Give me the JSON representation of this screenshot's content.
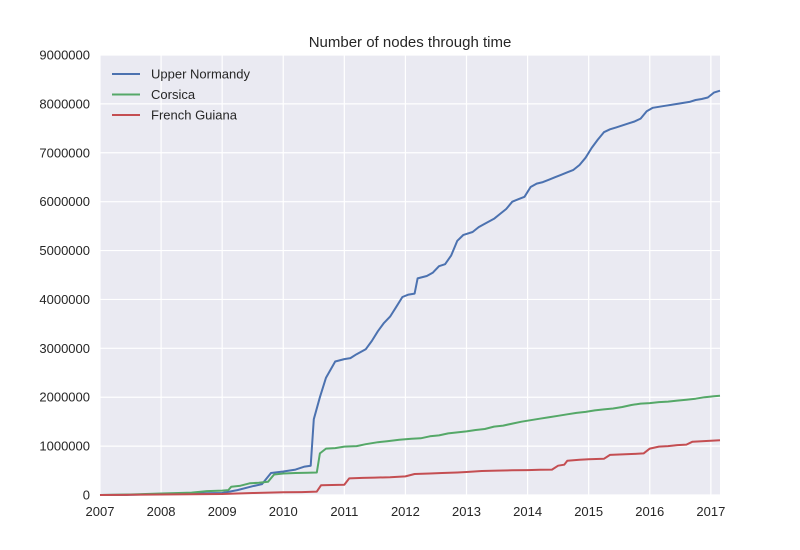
{
  "chart_data": {
    "type": "line",
    "title": "Number of nodes through time",
    "xlabel": "",
    "ylabel": "",
    "xlim": [
      2007.0,
      2017.15
    ],
    "ylim": [
      0,
      9000000
    ],
    "x_ticks": [
      2007,
      2008,
      2009,
      2010,
      2011,
      2012,
      2013,
      2014,
      2015,
      2016,
      2017
    ],
    "x_tick_labels": [
      "2007",
      "2008",
      "2009",
      "2010",
      "2011",
      "2012",
      "2013",
      "2014",
      "2015",
      "2016",
      "2017"
    ],
    "y_ticks": [
      0,
      1000000,
      2000000,
      3000000,
      4000000,
      5000000,
      6000000,
      7000000,
      8000000,
      9000000
    ],
    "y_tick_labels": [
      "0",
      "1000000",
      "2000000",
      "3000000",
      "4000000",
      "5000000",
      "6000000",
      "7000000",
      "8000000",
      "9000000"
    ],
    "grid": true,
    "legend_position": "upper-left",
    "background_color": "#eaeaf2",
    "series": [
      {
        "name": "Upper Normandy",
        "color": "#4c72b0",
        "points": [
          [
            2007.0,
            0
          ],
          [
            2007.5,
            5000
          ],
          [
            2008.0,
            20000
          ],
          [
            2008.5,
            30000
          ],
          [
            2009.0,
            40000
          ],
          [
            2009.25,
            100000
          ],
          [
            2009.5,
            180000
          ],
          [
            2009.65,
            220000
          ],
          [
            2009.8,
            450000
          ],
          [
            2010.0,
            480000
          ],
          [
            2010.2,
            520000
          ],
          [
            2010.35,
            580000
          ],
          [
            2010.45,
            600000
          ],
          [
            2010.5,
            1550000
          ],
          [
            2010.6,
            2000000
          ],
          [
            2010.7,
            2400000
          ],
          [
            2010.85,
            2730000
          ],
          [
            2011.0,
            2780000
          ],
          [
            2011.1,
            2800000
          ],
          [
            2011.2,
            2880000
          ],
          [
            2011.35,
            2980000
          ],
          [
            2011.45,
            3150000
          ],
          [
            2011.55,
            3350000
          ],
          [
            2011.65,
            3520000
          ],
          [
            2011.75,
            3650000
          ],
          [
            2011.85,
            3850000
          ],
          [
            2011.95,
            4050000
          ],
          [
            2012.05,
            4100000
          ],
          [
            2012.15,
            4120000
          ],
          [
            2012.2,
            4430000
          ],
          [
            2012.35,
            4480000
          ],
          [
            2012.45,
            4550000
          ],
          [
            2012.55,
            4680000
          ],
          [
            2012.65,
            4720000
          ],
          [
            2012.75,
            4900000
          ],
          [
            2012.85,
            5200000
          ],
          [
            2012.95,
            5320000
          ],
          [
            2013.1,
            5380000
          ],
          [
            2013.2,
            5480000
          ],
          [
            2013.3,
            5550000
          ],
          [
            2013.45,
            5650000
          ],
          [
            2013.55,
            5750000
          ],
          [
            2013.65,
            5850000
          ],
          [
            2013.75,
            6000000
          ],
          [
            2013.85,
            6050000
          ],
          [
            2013.95,
            6100000
          ],
          [
            2014.05,
            6300000
          ],
          [
            2014.15,
            6370000
          ],
          [
            2014.25,
            6400000
          ],
          [
            2014.35,
            6450000
          ],
          [
            2014.45,
            6500000
          ],
          [
            2014.55,
            6550000
          ],
          [
            2014.65,
            6600000
          ],
          [
            2014.75,
            6650000
          ],
          [
            2014.85,
            6750000
          ],
          [
            2014.95,
            6900000
          ],
          [
            2015.05,
            7100000
          ],
          [
            2015.15,
            7270000
          ],
          [
            2015.25,
            7420000
          ],
          [
            2015.35,
            7480000
          ],
          [
            2015.45,
            7520000
          ],
          [
            2015.55,
            7560000
          ],
          [
            2015.65,
            7600000
          ],
          [
            2015.75,
            7640000
          ],
          [
            2015.85,
            7700000
          ],
          [
            2015.95,
            7850000
          ],
          [
            2016.05,
            7920000
          ],
          [
            2016.15,
            7940000
          ],
          [
            2016.25,
            7960000
          ],
          [
            2016.35,
            7980000
          ],
          [
            2016.45,
            8000000
          ],
          [
            2016.55,
            8020000
          ],
          [
            2016.65,
            8040000
          ],
          [
            2016.75,
            8080000
          ],
          [
            2016.85,
            8100000
          ],
          [
            2016.95,
            8130000
          ],
          [
            2017.05,
            8230000
          ],
          [
            2017.15,
            8270000
          ]
        ]
      },
      {
        "name": "Corsica",
        "color": "#55a868",
        "points": [
          [
            2007.0,
            0
          ],
          [
            2007.5,
            10000
          ],
          [
            2008.0,
            30000
          ],
          [
            2008.5,
            50000
          ],
          [
            2008.75,
            80000
          ],
          [
            2009.0,
            90000
          ],
          [
            2009.1,
            100000
          ],
          [
            2009.15,
            170000
          ],
          [
            2009.3,
            190000
          ],
          [
            2009.45,
            240000
          ],
          [
            2009.6,
            250000
          ],
          [
            2009.75,
            270000
          ],
          [
            2009.85,
            420000
          ],
          [
            2010.0,
            440000
          ],
          [
            2010.2,
            450000
          ],
          [
            2010.4,
            455000
          ],
          [
            2010.55,
            460000
          ],
          [
            2010.6,
            850000
          ],
          [
            2010.7,
            950000
          ],
          [
            2010.85,
            960000
          ],
          [
            2011.0,
            990000
          ],
          [
            2011.2,
            1000000
          ],
          [
            2011.35,
            1040000
          ],
          [
            2011.55,
            1080000
          ],
          [
            2011.7,
            1100000
          ],
          [
            2011.9,
            1130000
          ],
          [
            2012.1,
            1150000
          ],
          [
            2012.25,
            1160000
          ],
          [
            2012.4,
            1200000
          ],
          [
            2012.55,
            1220000
          ],
          [
            2012.7,
            1260000
          ],
          [
            2012.85,
            1280000
          ],
          [
            2013.0,
            1300000
          ],
          [
            2013.15,
            1330000
          ],
          [
            2013.3,
            1350000
          ],
          [
            2013.45,
            1400000
          ],
          [
            2013.6,
            1420000
          ],
          [
            2013.75,
            1460000
          ],
          [
            2013.9,
            1500000
          ],
          [
            2014.05,
            1530000
          ],
          [
            2014.2,
            1560000
          ],
          [
            2014.35,
            1590000
          ],
          [
            2014.5,
            1620000
          ],
          [
            2014.65,
            1650000
          ],
          [
            2014.8,
            1680000
          ],
          [
            2014.95,
            1700000
          ],
          [
            2015.1,
            1730000
          ],
          [
            2015.25,
            1750000
          ],
          [
            2015.4,
            1770000
          ],
          [
            2015.55,
            1800000
          ],
          [
            2015.7,
            1840000
          ],
          [
            2015.85,
            1870000
          ],
          [
            2016.0,
            1880000
          ],
          [
            2016.15,
            1900000
          ],
          [
            2016.3,
            1910000
          ],
          [
            2016.45,
            1930000
          ],
          [
            2016.6,
            1950000
          ],
          [
            2016.75,
            1970000
          ],
          [
            2016.9,
            2000000
          ],
          [
            2017.05,
            2020000
          ],
          [
            2017.15,
            2030000
          ]
        ]
      },
      {
        "name": "French Guiana",
        "color": "#c44e52",
        "points": [
          [
            2007.0,
            0
          ],
          [
            2007.5,
            5000
          ],
          [
            2008.0,
            10000
          ],
          [
            2008.5,
            15000
          ],
          [
            2009.0,
            20000
          ],
          [
            2009.5,
            40000
          ],
          [
            2010.0,
            55000
          ],
          [
            2010.3,
            60000
          ],
          [
            2010.55,
            70000
          ],
          [
            2010.62,
            200000
          ],
          [
            2010.8,
            205000
          ],
          [
            2011.0,
            210000
          ],
          [
            2011.08,
            340000
          ],
          [
            2011.3,
            350000
          ],
          [
            2011.5,
            355000
          ],
          [
            2011.75,
            365000
          ],
          [
            2012.0,
            380000
          ],
          [
            2012.15,
            430000
          ],
          [
            2012.4,
            440000
          ],
          [
            2012.6,
            450000
          ],
          [
            2012.85,
            460000
          ],
          [
            2013.0,
            470000
          ],
          [
            2013.25,
            490000
          ],
          [
            2013.5,
            500000
          ],
          [
            2013.75,
            505000
          ],
          [
            2014.0,
            510000
          ],
          [
            2014.2,
            515000
          ],
          [
            2014.4,
            520000
          ],
          [
            2014.5,
            600000
          ],
          [
            2014.6,
            620000
          ],
          [
            2014.65,
            700000
          ],
          [
            2014.85,
            720000
          ],
          [
            2015.0,
            730000
          ],
          [
            2015.25,
            740000
          ],
          [
            2015.35,
            820000
          ],
          [
            2015.55,
            830000
          ],
          [
            2015.75,
            840000
          ],
          [
            2015.9,
            850000
          ],
          [
            2016.0,
            950000
          ],
          [
            2016.15,
            990000
          ],
          [
            2016.3,
            1000000
          ],
          [
            2016.45,
            1020000
          ],
          [
            2016.6,
            1030000
          ],
          [
            2016.7,
            1090000
          ],
          [
            2016.85,
            1100000
          ],
          [
            2017.0,
            1110000
          ],
          [
            2017.15,
            1120000
          ]
        ]
      }
    ]
  }
}
